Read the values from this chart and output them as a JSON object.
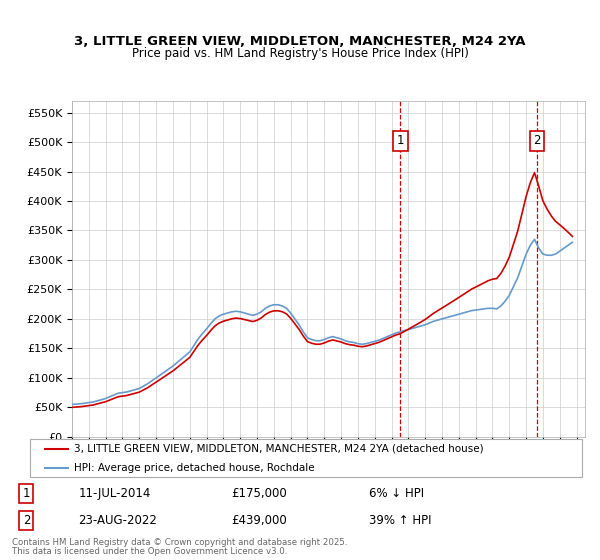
{
  "title1": "3, LITTLE GREEN VIEW, MIDDLETON, MANCHESTER, M24 2YA",
  "title2": "Price paid vs. HM Land Registry's House Price Index (HPI)",
  "ylim": [
    0,
    570000
  ],
  "yticks": [
    0,
    50000,
    100000,
    150000,
    200000,
    250000,
    300000,
    350000,
    400000,
    450000,
    500000,
    550000
  ],
  "ytick_labels": [
    "£0",
    "£50K",
    "£100K",
    "£150K",
    "£200K",
    "£250K",
    "£300K",
    "£350K",
    "£400K",
    "£450K",
    "£500K",
    "£550K"
  ],
  "sale1_year": 2014.53,
  "sale1_price": 175000,
  "sale1_date": "11-JUL-2014",
  "sale1_pct": "6% ↓ HPI",
  "sale2_year": 2022.64,
  "sale2_price": 439000,
  "sale2_date": "23-AUG-2022",
  "sale2_pct": "39% ↑ HPI",
  "red_color": "#cc0000",
  "blue_color": "#6699cc",
  "legend1": "3, LITTLE GREEN VIEW, MIDDLETON, MANCHESTER, M24 2YA (detached house)",
  "legend2": "HPI: Average price, detached house, Rochdale",
  "footer1": "Contains HM Land Registry data © Crown copyright and database right 2025.",
  "footer2": "This data is licensed under the Open Government Licence v3.0.",
  "bg_color": "#ffffff",
  "grid_color": "#cccccc",
  "hpi_years": [
    1995,
    1995.25,
    1995.5,
    1995.75,
    1996,
    1996.25,
    1996.5,
    1996.75,
    1997,
    1997.25,
    1997.5,
    1997.75,
    1998,
    1998.25,
    1998.5,
    1998.75,
    1999,
    1999.25,
    1999.5,
    1999.75,
    2000,
    2000.25,
    2000.5,
    2000.75,
    2001,
    2001.25,
    2001.5,
    2001.75,
    2002,
    2002.25,
    2002.5,
    2002.75,
    2003,
    2003.25,
    2003.5,
    2003.75,
    2004,
    2004.25,
    2004.5,
    2004.75,
    2005,
    2005.25,
    2005.5,
    2005.75,
    2006,
    2006.25,
    2006.5,
    2006.75,
    2007,
    2007.25,
    2007.5,
    2007.75,
    2008,
    2008.25,
    2008.5,
    2008.75,
    2009,
    2009.25,
    2009.5,
    2009.75,
    2010,
    2010.25,
    2010.5,
    2010.75,
    2011,
    2011.25,
    2011.5,
    2011.75,
    2012,
    2012.25,
    2012.5,
    2012.75,
    2013,
    2013.25,
    2013.5,
    2013.75,
    2014,
    2014.25,
    2014.5,
    2014.75,
    2015,
    2015.25,
    2015.5,
    2015.75,
    2016,
    2016.25,
    2016.5,
    2016.75,
    2017,
    2017.25,
    2017.5,
    2017.75,
    2018,
    2018.25,
    2018.5,
    2018.75,
    2019,
    2019.25,
    2019.5,
    2019.75,
    2020,
    2020.25,
    2020.5,
    2020.75,
    2021,
    2021.25,
    2021.5,
    2021.75,
    2022,
    2022.25,
    2022.5,
    2022.75,
    2023,
    2023.25,
    2023.5,
    2023.75,
    2024,
    2024.25,
    2024.5,
    2024.75
  ],
  "hpi_values": [
    55000,
    55500,
    56000,
    57000,
    58000,
    59000,
    61000,
    63000,
    65000,
    68000,
    71000,
    74000,
    75000,
    76000,
    78000,
    80000,
    82000,
    86000,
    90000,
    95000,
    100000,
    105000,
    110000,
    115000,
    120000,
    126000,
    132000,
    138000,
    144000,
    155000,
    166000,
    175000,
    183000,
    192000,
    200000,
    205000,
    208000,
    210000,
    212000,
    213000,
    212000,
    210000,
    208000,
    206000,
    208000,
    212000,
    218000,
    222000,
    224000,
    224000,
    222000,
    218000,
    210000,
    200000,
    190000,
    178000,
    168000,
    165000,
    163000,
    163000,
    165000,
    168000,
    170000,
    168000,
    166000,
    163000,
    161000,
    160000,
    158000,
    157000,
    158000,
    160000,
    162000,
    164000,
    167000,
    170000,
    173000,
    176000,
    178000,
    180000,
    182000,
    184000,
    186000,
    188000,
    190000,
    193000,
    196000,
    198000,
    200000,
    202000,
    204000,
    206000,
    208000,
    210000,
    212000,
    214000,
    215000,
    216000,
    217000,
    218000,
    218000,
    217000,
    222000,
    230000,
    240000,
    255000,
    270000,
    290000,
    310000,
    325000,
    335000,
    320000,
    310000,
    308000,
    308000,
    310000,
    315000,
    320000,
    325000,
    330000
  ],
  "xmin": 1995,
  "xmax": 2025.5,
  "xtick_years": [
    1995,
    1996,
    1997,
    1998,
    1999,
    2000,
    2001,
    2002,
    2003,
    2004,
    2005,
    2006,
    2007,
    2008,
    2009,
    2010,
    2011,
    2012,
    2013,
    2014,
    2015,
    2016,
    2017,
    2018,
    2019,
    2020,
    2021,
    2022,
    2023,
    2024,
    2025
  ]
}
